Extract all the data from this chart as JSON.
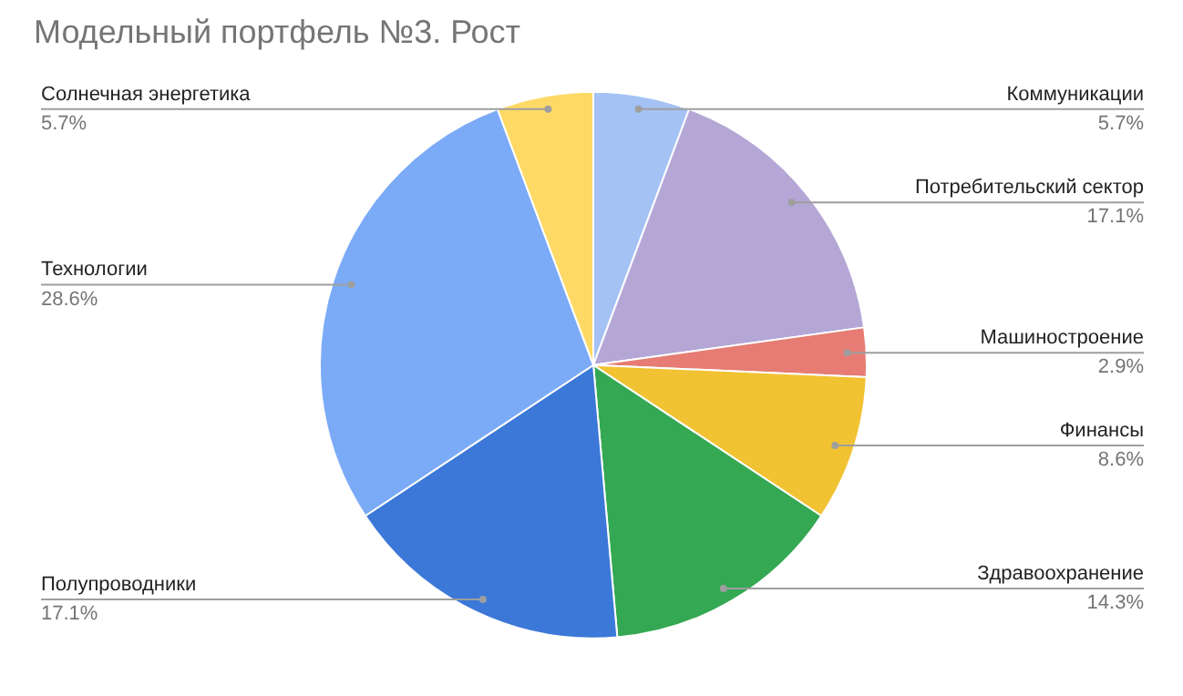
{
  "chart_data": {
    "type": "pie",
    "title": "Модельный портфель №3. Рост",
    "categories": [
      "Коммуникации",
      "Потребительский сектор",
      "Машиностроение",
      "Финансы",
      "Здравоохранение",
      "Полупроводники",
      "Технологии",
      "Солнечная энергетика"
    ],
    "values": [
      5.7,
      17.1,
      2.9,
      8.6,
      14.3,
      17.1,
      28.6,
      5.7
    ],
    "value_labels": [
      "5.7%",
      "17.1%",
      "2.9%",
      "8.6%",
      "14.3%",
      "17.1%",
      "28.6%",
      "5.7%"
    ],
    "colors": [
      "#a4c2f4",
      "#b4a7d6",
      "#e67c73",
      "#f1c232",
      "#34a853",
      "#3c78d8",
      "#7baaf7",
      "#ffd966"
    ]
  }
}
